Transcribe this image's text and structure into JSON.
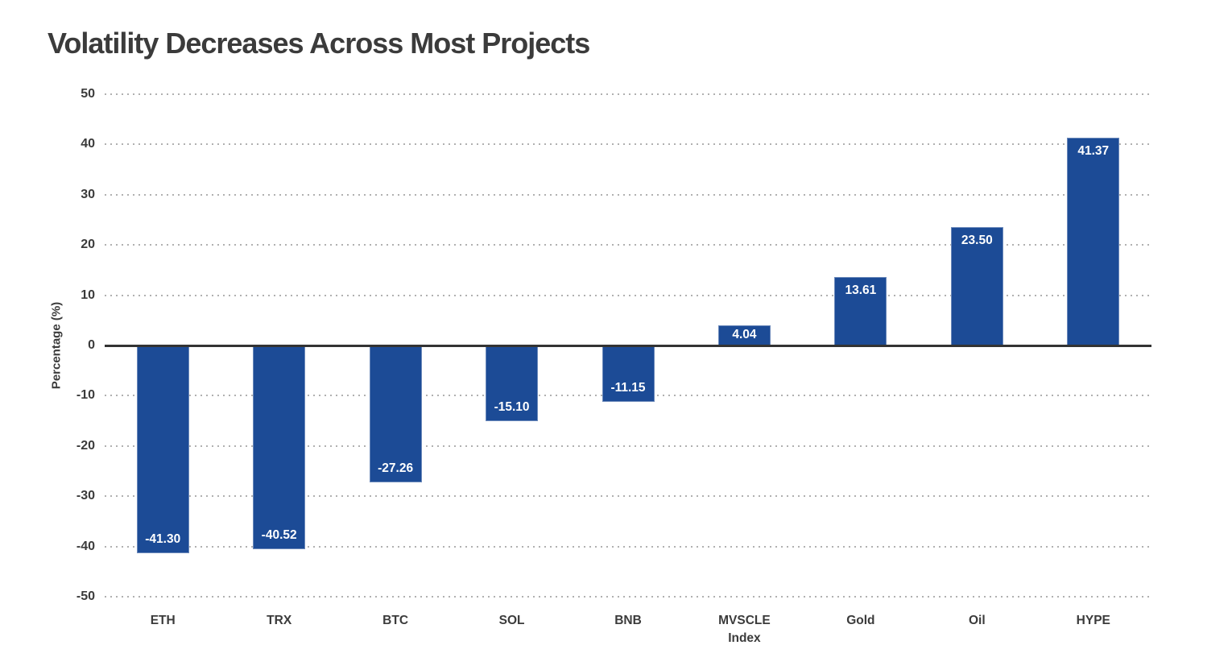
{
  "header": {
    "title": "Volatility Decreases Across Most Projects"
  },
  "chart_data": {
    "type": "bar",
    "title": "Volatility Decreases Across Most Projects",
    "categories": [
      "ETH",
      "TRX",
      "BTC",
      "SOL",
      "BNB",
      "MVSCLE Index",
      "Gold",
      "Oil",
      "HYPE"
    ],
    "values": [
      -41.3,
      -40.52,
      -27.26,
      -15.1,
      -11.15,
      4.04,
      13.61,
      23.5,
      41.37
    ],
    "value_labels": [
      "-41.30",
      "-40.52",
      "-27.26",
      "-15.10",
      "-11.15",
      "4.04",
      "13.61",
      "23.50",
      "41.37"
    ],
    "xlabel": "",
    "ylabel": "Percentage (%)",
    "ylim": [
      -50,
      50
    ],
    "yticks": [
      50,
      40,
      30,
      20,
      10,
      0,
      -10,
      -20,
      -30,
      -40,
      -50
    ],
    "grid": "horizontal-dotted",
    "legend": "none",
    "colors": {
      "bar": "#1c4b96",
      "zero_line": "#333333",
      "grid": "#a2a2a2",
      "axis_text": "#3b3b3b",
      "value_label": "#ffffff",
      "background": "#ffffff"
    }
  }
}
